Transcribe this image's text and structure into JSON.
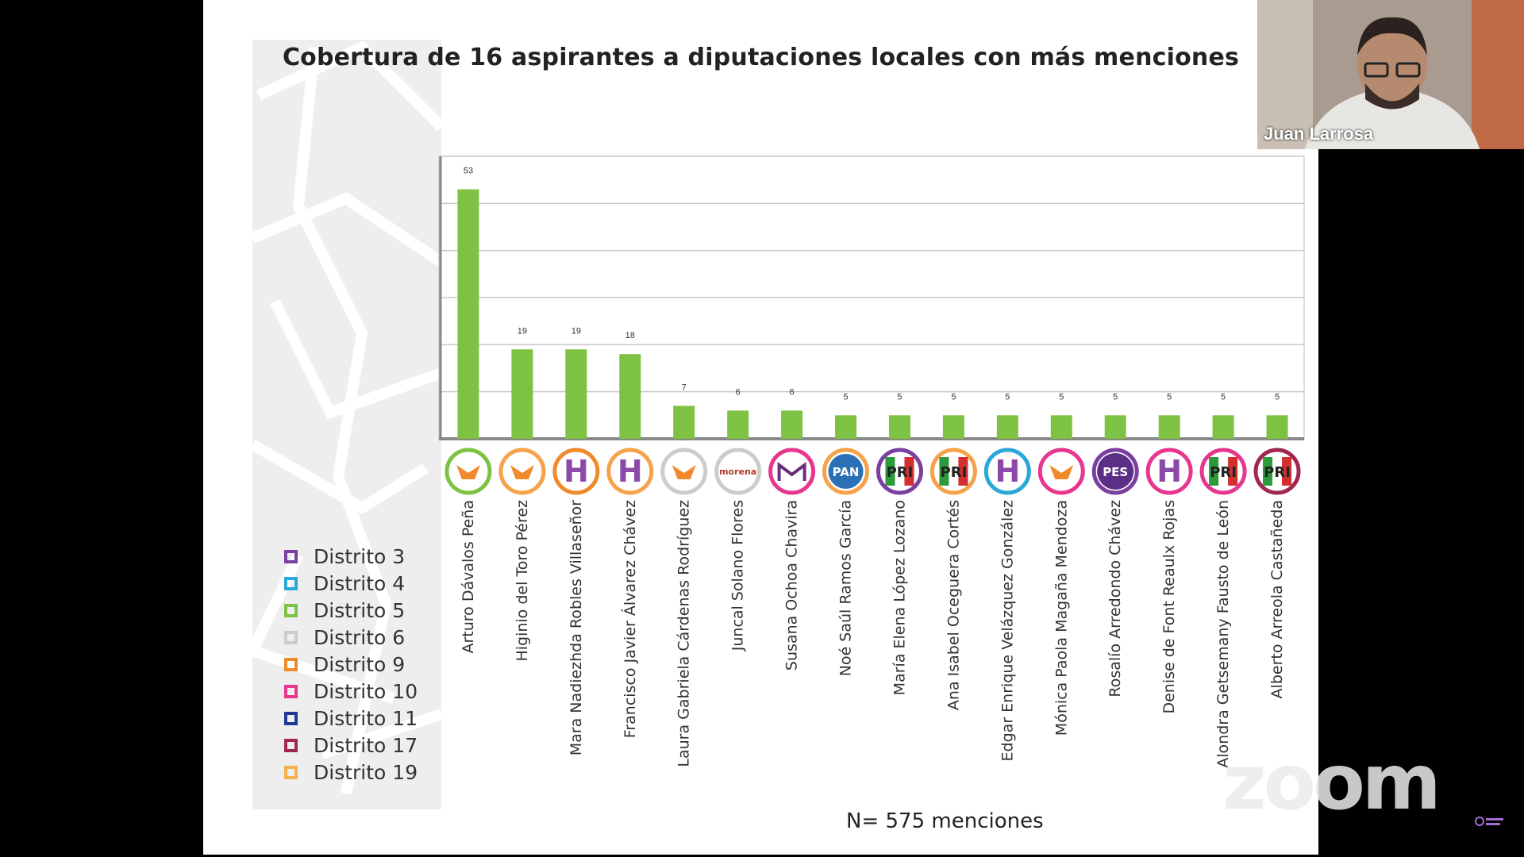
{
  "chart_data": {
    "type": "bar",
    "title": "Cobertura de 16 aspirantes a diputaciones locales con más menciones",
    "categories": [
      "Arturo Dávalos Peña",
      "Higinio del Toro Pérez",
      "Mara Nadiezhda Robles Villaseñor",
      "Francisco Javier Álvarez Chávez",
      "Laura Gabriela Cárdenas Rodríguez",
      "Juncal Solano Flores",
      "Susana Ochoa Chavira",
      "Noé Saúl Ramos García",
      "María Elena López Lozano",
      "Ana Isabel Oceguera Cortés",
      "Edgar Enrique Velázquez González",
      "Mónica Paola Magaña Mendoza",
      "Rosalío Arredondo Chávez",
      "Denise de Font Reaulx Rojas",
      "Alondra Getsemany Fausto de León",
      "Alberto Arreola Castañeda"
    ],
    "values": [
      53,
      19,
      19,
      18,
      7,
      6,
      6,
      5,
      5,
      5,
      5,
      5,
      5,
      5,
      5,
      5
    ],
    "ylim": [
      0,
      60
    ],
    "gridlines": [
      10,
      20,
      30,
      40,
      50,
      60
    ],
    "bar_color": "#7dc242",
    "party_logos": [
      "MC",
      "MC",
      "H",
      "H",
      "MC",
      "morena",
      "FXM",
      "PAN",
      "PRI",
      "PRI",
      "H",
      "MC",
      "PES",
      "H",
      "PRI",
      "PRI"
    ],
    "ring_colors": [
      "#7dc242",
      "#f5a24a",
      "#f08a2c",
      "#f5a24a",
      "#cccccc",
      "#cccccc",
      "#e8368f",
      "#f5a24a",
      "#7b3fa0",
      "#f5a24a",
      "#2aa8d8",
      "#e8368f",
      "#7b3fa0",
      "#e8368f",
      "#e8368f",
      "#a0284c"
    ]
  },
  "legend": [
    {
      "label": "Distrito 3",
      "color": "#7b3fa0"
    },
    {
      "label": "Distrito 4",
      "color": "#2aa8d8"
    },
    {
      "label": "Distrito 5",
      "color": "#7dc242"
    },
    {
      "label": "Distrito 6",
      "color": "#cccccc"
    },
    {
      "label": "Distrito 9",
      "color": "#f08a2c"
    },
    {
      "label": "Distrito 10",
      "color": "#e8368f"
    },
    {
      "label": "Distrito 11",
      "color": "#1f3a93"
    },
    {
      "label": "Distrito 17",
      "color": "#a0284c"
    },
    {
      "label": "Distrito 19",
      "color": "#f5b14a"
    }
  ],
  "footnote": "N= 575 menciones",
  "participant": {
    "name": "Juan Larrosa"
  },
  "zoom_watermark": "zoom"
}
